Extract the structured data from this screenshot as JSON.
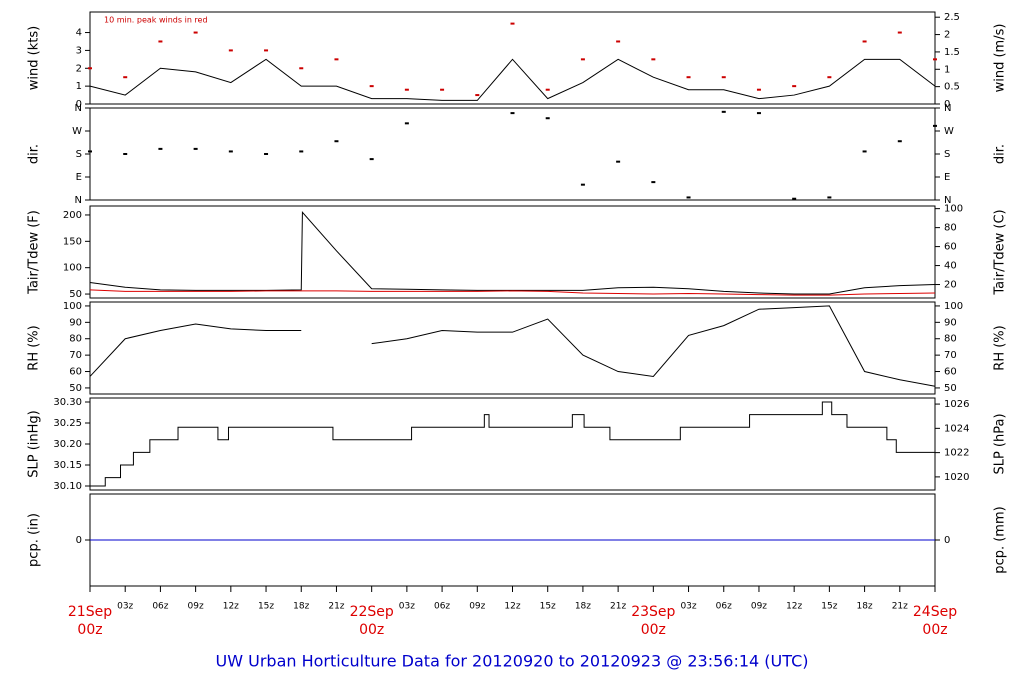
{
  "title": "UW Urban Horticulture Data for 20120920  to  20120923 @ 23:56:14  (UTC)",
  "x_axis": {
    "xlim": [
      0,
      72
    ],
    "xticks": [
      {
        "value": 0,
        "label": "00z",
        "date": "21Sep"
      },
      {
        "value": 3,
        "label": "03z"
      },
      {
        "value": 6,
        "label": "06z"
      },
      {
        "value": 9,
        "label": "09z"
      },
      {
        "value": 12,
        "label": "12z"
      },
      {
        "value": 15,
        "label": "15z"
      },
      {
        "value": 18,
        "label": "18z"
      },
      {
        "value": 21,
        "label": "21z"
      },
      {
        "value": 24,
        "label": "00z",
        "date": "22Sep"
      },
      {
        "value": 27,
        "label": "03z"
      },
      {
        "value": 30,
        "label": "06z"
      },
      {
        "value": 33,
        "label": "09z"
      },
      {
        "value": 36,
        "label": "12z"
      },
      {
        "value": 39,
        "label": "15z"
      },
      {
        "value": 42,
        "label": "18z"
      },
      {
        "value": 45,
        "label": "21z"
      },
      {
        "value": 48,
        "label": "00z",
        "date": "23Sep"
      },
      {
        "value": 51,
        "label": "03z"
      },
      {
        "value": 54,
        "label": "06z"
      },
      {
        "value": 57,
        "label": "09z"
      },
      {
        "value": 60,
        "label": "12z"
      },
      {
        "value": 63,
        "label": "15z"
      },
      {
        "value": 66,
        "label": "18z"
      },
      {
        "value": 69,
        "label": "21z"
      },
      {
        "value": 72,
        "label": "00z",
        "date": "24Sep"
      }
    ]
  },
  "chart_data": [
    {
      "type": "line",
      "ylabel": "wind (kts)",
      "y2label": "wind (m/s)",
      "annotation": "10 min. peak winds in red",
      "ylim": [
        0,
        5.15
      ],
      "yticks": [
        0,
        1,
        2,
        3,
        4
      ],
      "y2lim": [
        0,
        2.65
      ],
      "y2ticks": [
        0,
        0.5,
        1,
        1.5,
        2,
        2.5
      ],
      "x": [
        0,
        3,
        6,
        9,
        12,
        15,
        18,
        21,
        24,
        27,
        30,
        33,
        36,
        39,
        42,
        45,
        48,
        51,
        54,
        57,
        60,
        63,
        66,
        69,
        72
      ],
      "series": [
        {
          "name": "wind",
          "color": "#000000",
          "values": [
            1,
            0.5,
            2,
            1.8,
            1.2,
            2.5,
            1,
            1,
            0.3,
            0.3,
            0.2,
            0.2,
            2.5,
            0.3,
            1.2,
            2.5,
            1.5,
            0.8,
            0.8,
            0.3,
            0.5,
            1,
            2.5,
            2.5,
            1
          ]
        },
        {
          "name": "peak",
          "color": "#cc0000",
          "mark": "point",
          "values": [
            2,
            1.5,
            3.5,
            4,
            3,
            3,
            2,
            2.5,
            1,
            0.8,
            0.8,
            0.5,
            4.5,
            0.8,
            2.5,
            3.5,
            2.5,
            1.5,
            1.5,
            0.8,
            1,
            1.5,
            3.5,
            4,
            2.5
          ]
        }
      ]
    },
    {
      "type": "scatter",
      "ylabel": "dir.",
      "y2label": "dir.",
      "ylim": [
        0,
        360
      ],
      "yticks": [
        {
          "value": 0,
          "label": "N"
        },
        {
          "value": 90,
          "label": "E"
        },
        {
          "value": 180,
          "label": "S"
        },
        {
          "value": 270,
          "label": "W"
        },
        {
          "value": 360,
          "label": "N"
        }
      ],
      "y2lim": [
        0,
        360
      ],
      "y2ticks": [
        {
          "value": 0,
          "label": "N"
        },
        {
          "value": 90,
          "label": "E"
        },
        {
          "value": 180,
          "label": "S"
        },
        {
          "value": 270,
          "label": "W"
        },
        {
          "value": 360,
          "label": "N"
        }
      ],
      "x": [
        0,
        3,
        6,
        9,
        12,
        15,
        18,
        21,
        24,
        27,
        30,
        33,
        36,
        39,
        42,
        45,
        48,
        51,
        54,
        57,
        60,
        63,
        66,
        69,
        72
      ],
      "series": [
        {
          "name": "dir",
          "color": "#000000",
          "mark": "point",
          "values": [
            190,
            180,
            200,
            200,
            190,
            180,
            190,
            230,
            160,
            300,
            null,
            null,
            340,
            320,
            60,
            150,
            70,
            10,
            345,
            340,
            5,
            10,
            190,
            230,
            290
          ]
        }
      ]
    },
    {
      "type": "line",
      "ylabel": "Tair/Tdew (F)",
      "y2label": "Tair/Tdew (C)",
      "ylim": [
        42.5,
        217
      ],
      "yticks": [
        50,
        100,
        150,
        200
      ],
      "y2lim": [
        5.8,
        102.8
      ],
      "y2ticks": [
        20,
        40,
        60,
        80,
        100
      ],
      "x": [
        0,
        3,
        6,
        9,
        12,
        15,
        18,
        18.1,
        21,
        24,
        27,
        30,
        33,
        36,
        39,
        42,
        45,
        48,
        51,
        54,
        57,
        60,
        63,
        66,
        69,
        72
      ],
      "series": [
        {
          "name": "Tair",
          "color": "#000000",
          "values": [
            72,
            63,
            58,
            57,
            57,
            57,
            58,
            205,
            132,
            60,
            59,
            58,
            57,
            57,
            57,
            57,
            62,
            63,
            60,
            55,
            52,
            50,
            50,
            62,
            66,
            68
          ]
        },
        {
          "name": "Tdew",
          "color": "#dd0000",
          "values": [
            58,
            55,
            55,
            55,
            55,
            56,
            56,
            56,
            56,
            55,
            55,
            55,
            55,
            56,
            55,
            52,
            51,
            50,
            51,
            50,
            49,
            48,
            48,
            50,
            51,
            52
          ]
        }
      ]
    },
    {
      "type": "line",
      "ylabel": "RH (%)",
      "y2label": "RH (%)",
      "ylim": [
        46.3,
        102.4
      ],
      "yticks": [
        50,
        60,
        70,
        80,
        90,
        100
      ],
      "y2lim": [
        46.3,
        102.4
      ],
      "y2ticks": [
        50,
        60,
        70,
        80,
        90,
        100
      ],
      "x": [
        0,
        3,
        6,
        9,
        12,
        15,
        18,
        21,
        24,
        27,
        30,
        33,
        36,
        39,
        42,
        45,
        48,
        51,
        54,
        57,
        60,
        63,
        66,
        69,
        72
      ],
      "series": [
        {
          "name": "RH",
          "color": "#000000",
          "values": [
            57,
            80,
            85,
            89,
            86,
            85,
            85,
            null,
            77,
            80,
            85,
            84,
            84,
            92,
            70,
            60,
            57,
            82,
            88,
            98,
            99,
            100,
            60,
            55,
            51
          ]
        }
      ]
    },
    {
      "type": "step",
      "ylabel": "SLP (inHg)",
      "y2label": "SLP (hPa)",
      "ylim": [
        30.0905,
        30.3095
      ],
      "yticks": [
        {
          "value": 30.1,
          "label": "30.10"
        },
        30.15,
        {
          "value": 30.2,
          "label": "30.20"
        },
        30.25,
        {
          "value": 30.3,
          "label": "30.30"
        }
      ],
      "y2lim": [
        1018.92,
        1026.5
      ],
      "y2ticks": [
        1020,
        1022,
        1024,
        1026
      ],
      "x": [
        0,
        1.3,
        2.6,
        3.7,
        5.1,
        7.5,
        10.9,
        11.8,
        20.7,
        27.4,
        33.6,
        34.0,
        41.1,
        42.1,
        44.3,
        50.3,
        56.2,
        62.4,
        63.2,
        64.5,
        67.9,
        68.7,
        72
      ],
      "series": [
        {
          "name": "SLP",
          "color": "#000000",
          "values": [
            30.1,
            30.12,
            30.15,
            30.18,
            30.21,
            30.24,
            30.21,
            30.24,
            30.21,
            30.24,
            30.27,
            30.24,
            30.27,
            30.24,
            30.21,
            30.24,
            30.27,
            30.3,
            30.27,
            30.24,
            30.21,
            30.18,
            30.18
          ]
        }
      ]
    },
    {
      "type": "line",
      "ylabel": "pcp. (in)",
      "y2label": "pcp. (mm)",
      "ylim": [
        -1,
        1
      ],
      "yticks": [
        0
      ],
      "y2lim": [
        -1,
        1
      ],
      "y2ticks": [
        0
      ],
      "x": [
        0,
        72
      ],
      "series": [
        {
          "name": "pcp",
          "color": "#0000cc",
          "values": [
            0,
            0
          ]
        }
      ]
    }
  ]
}
